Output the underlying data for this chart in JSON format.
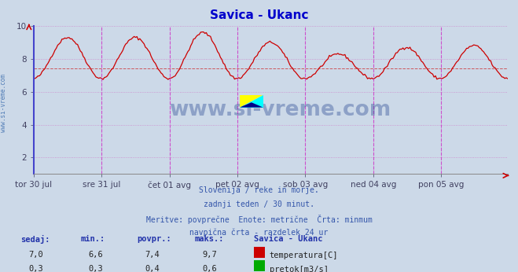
{
  "title": "Savica - Ukanc",
  "title_color": "#0000cc",
  "bg_color": "#ccd9e8",
  "plot_bg_color": "#ccd9e8",
  "grid_color": "#aabccc",
  "grid_color2": "#cc88cc",
  "x_label_color": "#404060",
  "y_label_color": "#404060",
  "temp_color": "#cc0000",
  "flow_color": "#00aa00",
  "avg_line_color": "#cc0000",
  "avg_line_value": 7.4,
  "vline_color": "#cc44cc",
  "ylim_min": 1.0,
  "ylim_max": 10.0,
  "yticks": [
    2,
    4,
    6,
    8,
    10
  ],
  "n_points": 336,
  "x_tick_labels": [
    "tor 30 jul",
    "sre 31 jul",
    "čet 01 avg",
    "pet 02 avg",
    "sob 03 avg",
    "ned 04 avg",
    "pon 05 avg"
  ],
  "footer_lines": [
    "Slovenija / reke in morje.",
    "zadnji teden / 30 minut.",
    "Meritve: povprečne  Enote: metrične  Črta: minmum",
    "navpična črta - razdelek 24 ur"
  ],
  "table_headers": [
    "sedaj:",
    "min.:",
    "povpr.:",
    "maks.:",
    "Savica - Ukanc"
  ],
  "table_row1": [
    "7,0",
    "6,6",
    "7,4",
    "9,7",
    "temperatura[C]"
  ],
  "table_row2": [
    "0,3",
    "0,3",
    "0,4",
    "0,6",
    "pretok[m3/s]"
  ],
  "watermark": "www.si-vreme.com",
  "watermark_color": "#1a3a8a",
  "sidebar_text": "www.si-vreme.com",
  "sidebar_color": "#3366aa",
  "left_spine_color": "#4444cc",
  "bottom_spine_color": "#888888",
  "arrow_color": "#cc0000",
  "peak_heights": [
    9.3,
    9.3,
    9.6,
    9.0,
    8.3,
    8.7,
    8.8
  ],
  "trough_heights": [
    6.8,
    6.8,
    6.8,
    6.8,
    6.8,
    6.8,
    6.8
  ]
}
